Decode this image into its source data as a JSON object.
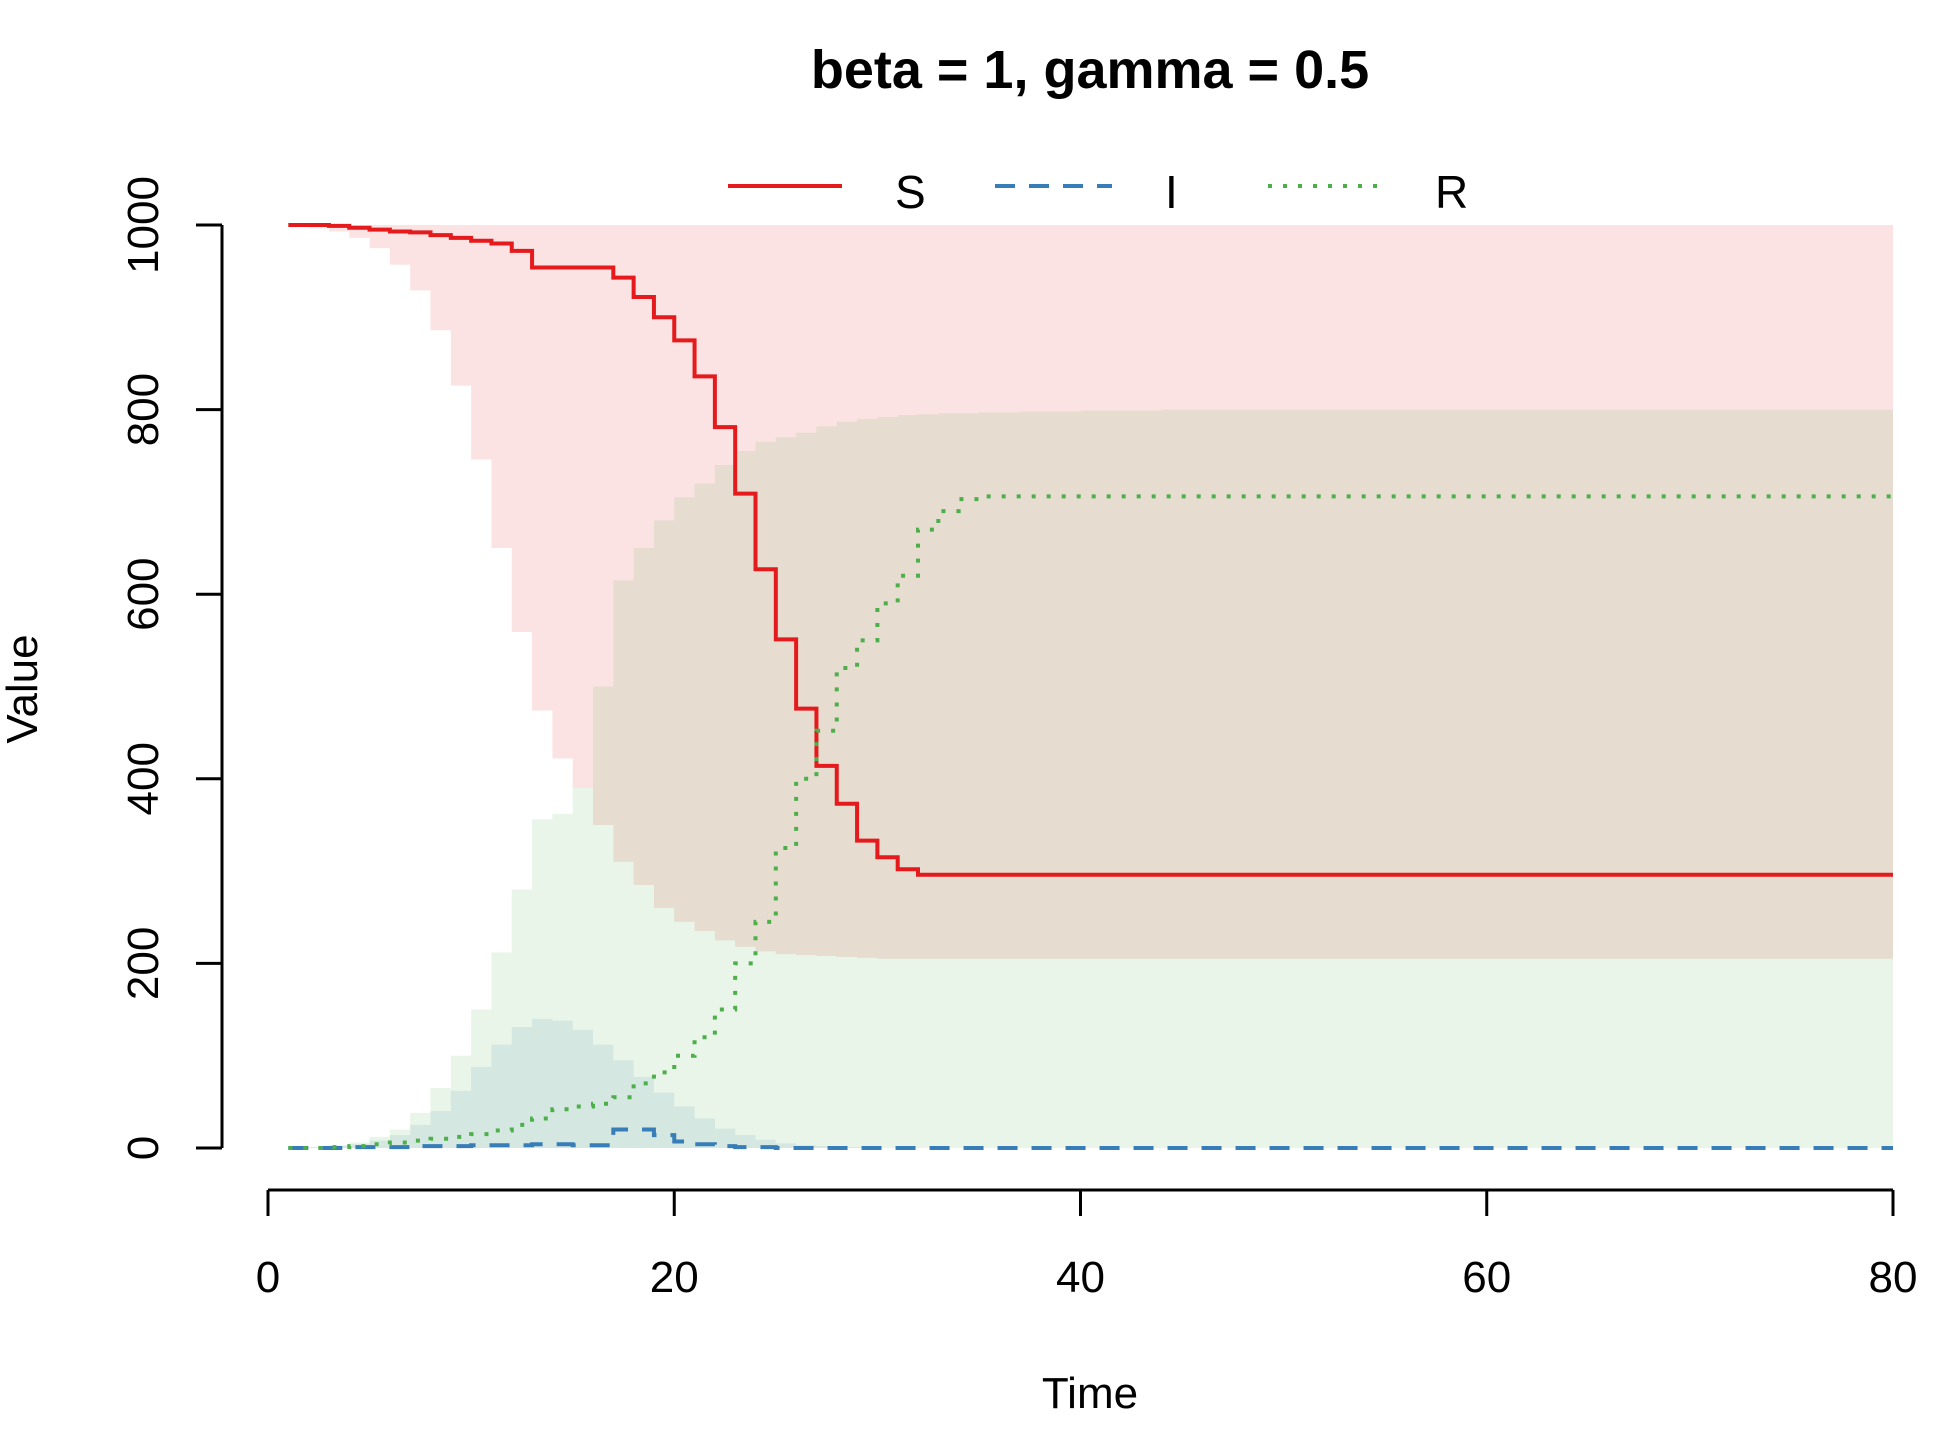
{
  "chart_data": {
    "type": "line",
    "title": "beta = 1, gamma = 0.5",
    "xlabel": "Time",
    "ylabel": "Value",
    "xlim": [
      0,
      80
    ],
    "ylim": [
      0,
      1000
    ],
    "x_ticks": [
      0,
      20,
      40,
      60,
      80
    ],
    "y_ticks": [
      0,
      200,
      400,
      600,
      800,
      1000
    ],
    "legend_position": "top",
    "grid": false,
    "step": true,
    "x": [
      1,
      2,
      3,
      4,
      5,
      6,
      7,
      8,
      9,
      10,
      11,
      12,
      13,
      14,
      15,
      16,
      17,
      18,
      19,
      20,
      21,
      22,
      23,
      24,
      25,
      26,
      27,
      28,
      29,
      30,
      31,
      32,
      33,
      34,
      35,
      36,
      37,
      38,
      39,
      40,
      41,
      42,
      43,
      44,
      45,
      46,
      47,
      48,
      49,
      50,
      51,
      52,
      53,
      54,
      55,
      56,
      57,
      58,
      59,
      60,
      61,
      62,
      63,
      64,
      65,
      66,
      67,
      68,
      69,
      70,
      71,
      72,
      73,
      74,
      75,
      76,
      77,
      78,
      79,
      80
    ],
    "series": [
      {
        "name": "S",
        "color": "#e41a1c",
        "line": "solid",
        "values": [
          1000,
          1000,
          999,
          997,
          995,
          993,
          992,
          989,
          986,
          983,
          980,
          972,
          954,
          954,
          954,
          954,
          943,
          922,
          900,
          875,
          836,
          781,
          709,
          627,
          551,
          476,
          414,
          373,
          333,
          315,
          302,
          296,
          296,
          296,
          296,
          296,
          296,
          296,
          296,
          296,
          296,
          296,
          296,
          296,
          296,
          296,
          296,
          296,
          296,
          296,
          296,
          296,
          296,
          296,
          296,
          296,
          296,
          296,
          296,
          296,
          296,
          296,
          296,
          296,
          296,
          296,
          296,
          296,
          296,
          296,
          296,
          296,
          296,
          296,
          296,
          296,
          296,
          296,
          296,
          296
        ],
        "band_low": [
          999,
          997,
          993,
          986,
          975,
          957,
          929,
          886,
          826,
          746,
          650,
          559,
          474,
          422,
          390,
          350,
          310,
          285,
          260,
          245,
          235,
          225,
          218,
          213,
          210,
          209,
          208,
          207,
          206,
          205,
          205,
          205,
          205,
          205,
          205,
          205,
          205,
          205,
          205,
          205,
          205,
          205,
          205,
          205,
          205,
          205,
          205,
          205,
          205,
          205,
          205,
          205,
          205,
          205,
          205,
          205,
          205,
          205,
          205,
          205,
          205,
          205,
          205,
          205,
          205,
          205,
          205,
          205,
          205,
          205,
          205,
          205,
          205,
          205,
          205,
          205,
          205,
          205,
          205,
          205
        ],
        "band_high": [
          1000,
          1000,
          1000,
          1000,
          1000,
          1000,
          1000,
          1000,
          1000,
          1000,
          1000,
          1000,
          1000,
          1000,
          1000,
          1000,
          1000,
          1000,
          1000,
          1000,
          1000,
          1000,
          1000,
          1000,
          1000,
          1000,
          1000,
          1000,
          1000,
          1000,
          1000,
          1000,
          1000,
          1000,
          1000,
          1000,
          1000,
          1000,
          1000,
          1000,
          1000,
          1000,
          1000,
          1000,
          1000,
          1000,
          1000,
          1000,
          1000,
          1000,
          1000,
          1000,
          1000,
          1000,
          1000,
          1000,
          1000,
          1000,
          1000,
          1000,
          1000,
          1000,
          1000,
          1000,
          1000,
          1000,
          1000,
          1000,
          1000,
          1000,
          1000,
          1000,
          1000,
          1000,
          1000,
          1000,
          1000,
          1000,
          1000,
          1000
        ]
      },
      {
        "name": "I",
        "color": "#377eb8",
        "line": "dashed",
        "values": [
          0,
          0,
          0,
          1,
          1,
          1,
          2,
          2,
          2,
          3,
          3,
          3,
          4,
          4,
          3,
          3,
          20,
          20,
          14,
          7,
          4,
          2,
          1,
          1,
          0,
          0,
          0,
          0,
          0,
          0,
          0,
          0,
          0,
          0,
          0,
          0,
          0,
          0,
          0,
          0,
          0,
          0,
          0,
          0,
          0,
          0,
          0,
          0,
          0,
          0,
          0,
          0,
          0,
          0,
          0,
          0,
          0,
          0,
          0,
          0,
          0,
          0,
          0,
          0,
          0,
          0,
          0,
          0,
          0,
          0,
          0,
          0,
          0,
          0,
          0,
          0,
          0,
          0,
          0,
          0
        ],
        "band_low": [
          0,
          0,
          0,
          0,
          0,
          0,
          0,
          0,
          0,
          0,
          0,
          0,
          0,
          0,
          0,
          0,
          0,
          0,
          0,
          0,
          0,
          0,
          0,
          0,
          0,
          0,
          0,
          0,
          0,
          0,
          0,
          0,
          0,
          0,
          0,
          0,
          0,
          0,
          0,
          0,
          0,
          0,
          0,
          0,
          0,
          0,
          0,
          0,
          0,
          0,
          0,
          0,
          0,
          0,
          0,
          0,
          0,
          0,
          0,
          0,
          0,
          0,
          0,
          0,
          0,
          0,
          0,
          0,
          0,
          0,
          0,
          0,
          0,
          0,
          0,
          0,
          0,
          0,
          0,
          0
        ],
        "band_high": [
          0,
          1,
          2,
          4,
          8,
          14,
          25,
          40,
          62,
          88,
          112,
          131,
          140,
          138,
          128,
          112,
          95,
          77,
          60,
          45,
          32,
          21,
          14,
          9,
          5,
          3,
          2,
          1,
          1,
          0,
          0,
          0,
          0,
          0,
          0,
          0,
          0,
          0,
          0,
          0,
          0,
          0,
          0,
          0,
          0,
          0,
          0,
          0,
          0,
          0,
          0,
          0,
          0,
          0,
          0,
          0,
          0,
          0,
          0,
          0,
          0,
          0,
          0,
          0,
          0,
          0,
          0,
          0,
          0,
          0,
          0,
          0,
          0,
          0,
          0,
          0,
          0,
          0,
          0,
          0
        ]
      },
      {
        "name": "R",
        "color": "#4daf4a",
        "line": "dotted",
        "values": [
          0,
          0,
          1,
          2,
          4,
          6,
          8,
          10,
          12,
          15,
          19,
          25,
          32,
          42,
          45,
          48,
          55,
          70,
          82,
          100,
          120,
          150,
          200,
          245,
          325,
          400,
          452,
          520,
          550,
          590,
          620,
          670,
          690,
          703,
          706,
          706,
          706,
          706,
          706,
          706,
          706,
          706,
          706,
          706,
          706,
          706,
          706,
          706,
          706,
          706,
          706,
          706,
          706,
          706,
          706,
          706,
          706,
          706,
          706,
          706,
          706,
          706,
          706,
          706,
          706,
          706,
          706,
          706,
          706,
          706,
          706,
          706,
          706,
          706,
          706,
          706,
          706,
          706,
          706,
          706
        ],
        "band_low": [
          0,
          0,
          0,
          0,
          0,
          0,
          0,
          0,
          0,
          0,
          0,
          0,
          0,
          0,
          0,
          0,
          0,
          0,
          0,
          0,
          0,
          0,
          0,
          0,
          0,
          0,
          0,
          0,
          0,
          0,
          0,
          0,
          0,
          0,
          0,
          0,
          0,
          0,
          0,
          0,
          0,
          0,
          0,
          0,
          0,
          0,
          0,
          0,
          0,
          0,
          0,
          0,
          0,
          0,
          0,
          0,
          0,
          0,
          0,
          0,
          0,
          0,
          0,
          0,
          0,
          0,
          0,
          0,
          0,
          0,
          0,
          0,
          0,
          0,
          0,
          0,
          0,
          0,
          0,
          0
        ],
        "band_high": [
          0,
          1,
          3,
          6,
          12,
          20,
          38,
          65,
          100,
          150,
          212,
          280,
          356,
          362,
          390,
          500,
          615,
          650,
          680,
          705,
          720,
          740,
          755,
          765,
          770,
          775,
          782,
          787,
          790,
          792,
          794,
          795,
          796,
          796,
          797,
          797,
          798,
          798,
          798,
          799,
          799,
          799,
          799,
          800,
          800,
          800,
          800,
          800,
          800,
          800,
          800,
          800,
          800,
          800,
          800,
          800,
          800,
          800,
          800,
          800,
          800,
          800,
          800,
          800,
          800,
          800,
          800,
          800,
          800,
          800,
          800,
          800,
          800,
          800,
          800,
          800,
          800,
          800,
          800,
          800
        ]
      }
    ]
  }
}
